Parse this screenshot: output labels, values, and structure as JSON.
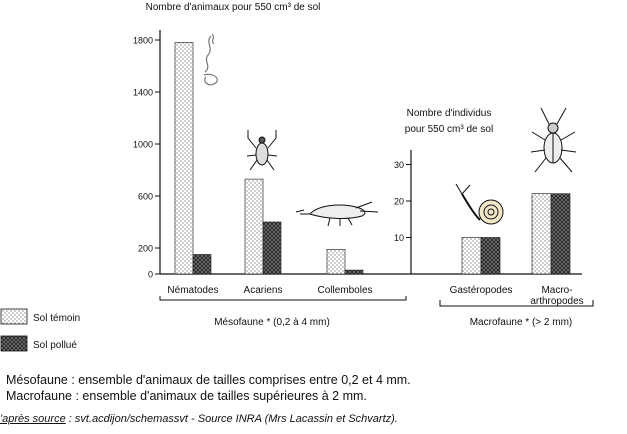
{
  "chart_data": [
    {
      "type": "bar",
      "title": "Nombre d'animaux pour 550 cm³ de sol",
      "xlabel": "",
      "ylabel": "",
      "ylim": [
        0,
        1800
      ],
      "yticks": [
        "0",
        "200",
        "600",
        "1000",
        "1400",
        "1800"
      ],
      "categories": [
        "Nématodes",
        "Acariens",
        "Collemboles"
      ],
      "group_label": "Mésofaune * (0,2 à 4 mm)",
      "series": [
        {
          "name": "Sol témoin",
          "values": [
            1780,
            730,
            190
          ]
        },
        {
          "name": "Sol pollué",
          "values": [
            150,
            400,
            30
          ]
        }
      ],
      "grid": false
    },
    {
      "type": "bar",
      "title_line1": "Nombre d'individus",
      "title_line2": "pour 550 cm³ de sol",
      "xlabel": "",
      "ylabel": "",
      "ylim": [
        0,
        40
      ],
      "yticks": [
        "10",
        "20",
        "30"
      ],
      "categories": [
        "Gastéropodes",
        "Macro-arthropodes"
      ],
      "category_lines": [
        [
          "Gastéropodes"
        ],
        [
          "Macro-",
          "arthropodes"
        ]
      ],
      "group_label": "Macrofaune * (> 2 mm)",
      "series": [
        {
          "name": "Sol témoin",
          "values": [
            10,
            22
          ]
        },
        {
          "name": "Sol pollué",
          "values": [
            10,
            22
          ]
        }
      ],
      "grid": false
    }
  ],
  "legend": {
    "placement": "bottom-left",
    "items": [
      {
        "label": "Sol témoin",
        "pattern": "dots"
      },
      {
        "label": "Sol pollué",
        "pattern": "crosshatch"
      }
    ]
  },
  "footnotes": {
    "line1": "Mésofaune : ensemble d'animaux de tailles comprises entre 0,2 et 4 mm.",
    "line2": "Macrofaune : ensemble d'animaux de tailles supérieures à 2 mm.",
    "source_label": "'après source",
    "source_rest": " : svt.acdijon/schemassvt  -  Source INRA (Mrs Lacassin et Schvartz)."
  },
  "colors": {
    "ink": "#111111",
    "dots": "#555555",
    "hatch": "#333333"
  },
  "icons": [
    "nematode-icon",
    "mite-icon",
    "springtail-icon",
    "snail-icon",
    "beetle-icon"
  ]
}
